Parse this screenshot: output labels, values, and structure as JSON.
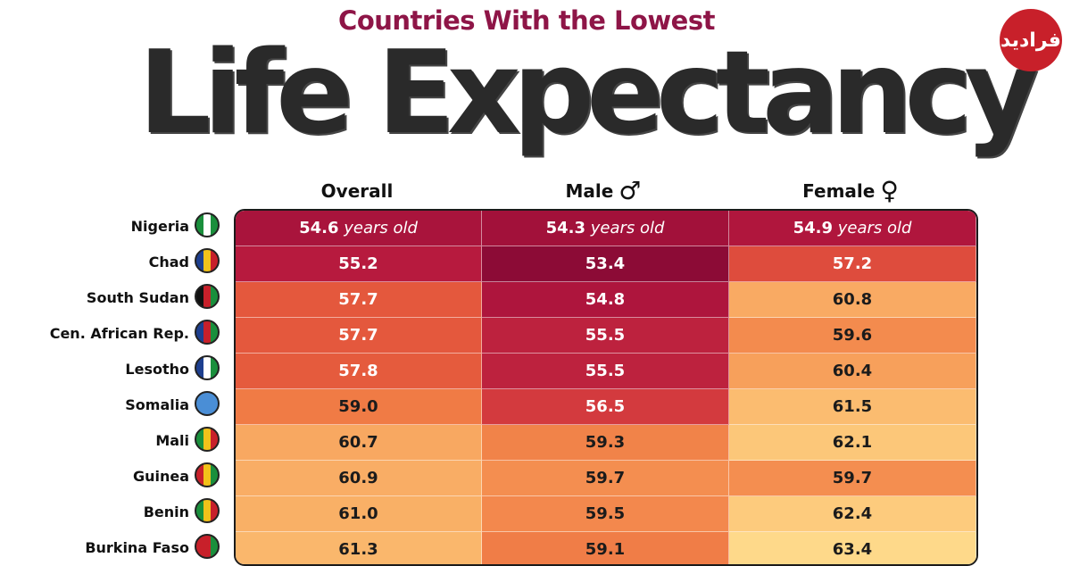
{
  "header": {
    "subtitle": "Countries With the Lowest",
    "title": "Life Expectancy"
  },
  "logo": {
    "text": "فرادید"
  },
  "chart_data": {
    "type": "table",
    "columns": [
      {
        "key": "overall",
        "label": "Overall",
        "symbol": ""
      },
      {
        "key": "male",
        "label": "Male",
        "symbol": "♂"
      },
      {
        "key": "female",
        "label": "Female",
        "symbol": "♀"
      }
    ],
    "first_row_suffix": " years old",
    "rows": [
      {
        "country": "Nigeria",
        "overall": "54.6",
        "male": "54.3",
        "female": "54.9",
        "flag": [
          "#1a8f3c",
          "#ffffff",
          "#1a8f3c"
        ]
      },
      {
        "country": "Chad",
        "overall": "55.2",
        "male": "53.4",
        "female": "57.2",
        "flag": [
          "#1d3f8f",
          "#f2c21a",
          "#c8202a"
        ]
      },
      {
        "country": "South Sudan",
        "overall": "57.7",
        "male": "54.8",
        "female": "60.8",
        "flag": [
          "#111111",
          "#c8202a",
          "#1a8f3c"
        ]
      },
      {
        "country": "Cen. African Rep.",
        "overall": "57.7",
        "male": "55.5",
        "female": "59.6",
        "flag": [
          "#1d3f8f",
          "#c8202a",
          "#1a8f3c"
        ]
      },
      {
        "country": "Lesotho",
        "overall": "57.8",
        "male": "55.5",
        "female": "60.4",
        "flag": [
          "#1d3f8f",
          "#ffffff",
          "#1a8f3c"
        ]
      },
      {
        "country": "Somalia",
        "overall": "59.0",
        "male": "56.5",
        "female": "61.5",
        "flag": [
          "#4a8ed6",
          "#4a8ed6",
          "#4a8ed6"
        ]
      },
      {
        "country": "Mali",
        "overall": "60.7",
        "male": "59.3",
        "female": "62.1",
        "flag": [
          "#1a8f3c",
          "#f2c21a",
          "#c8202a"
        ]
      },
      {
        "country": "Guinea",
        "overall": "60.9",
        "male": "59.7",
        "female": "59.7",
        "flag": [
          "#c8202a",
          "#f2c21a",
          "#1a8f3c"
        ]
      },
      {
        "country": "Benin",
        "overall": "61.0",
        "male": "59.5",
        "female": "62.4",
        "flag": [
          "#1a8f3c",
          "#f2c21a",
          "#c8202a"
        ]
      },
      {
        "country": "Burkina Faso",
        "overall": "61.3",
        "male": "59.1",
        "female": "63.4",
        "flag": [
          "#c8202a",
          "#c8202a",
          "#1a8f3c"
        ]
      }
    ],
    "color_scale": {
      "low": 53.4,
      "high": 63.4,
      "stops": [
        "#8c0b36",
        "#b4173e",
        "#d8403e",
        "#ec6a3c",
        "#f69855",
        "#fcc274",
        "#fed98a"
      ]
    }
  }
}
